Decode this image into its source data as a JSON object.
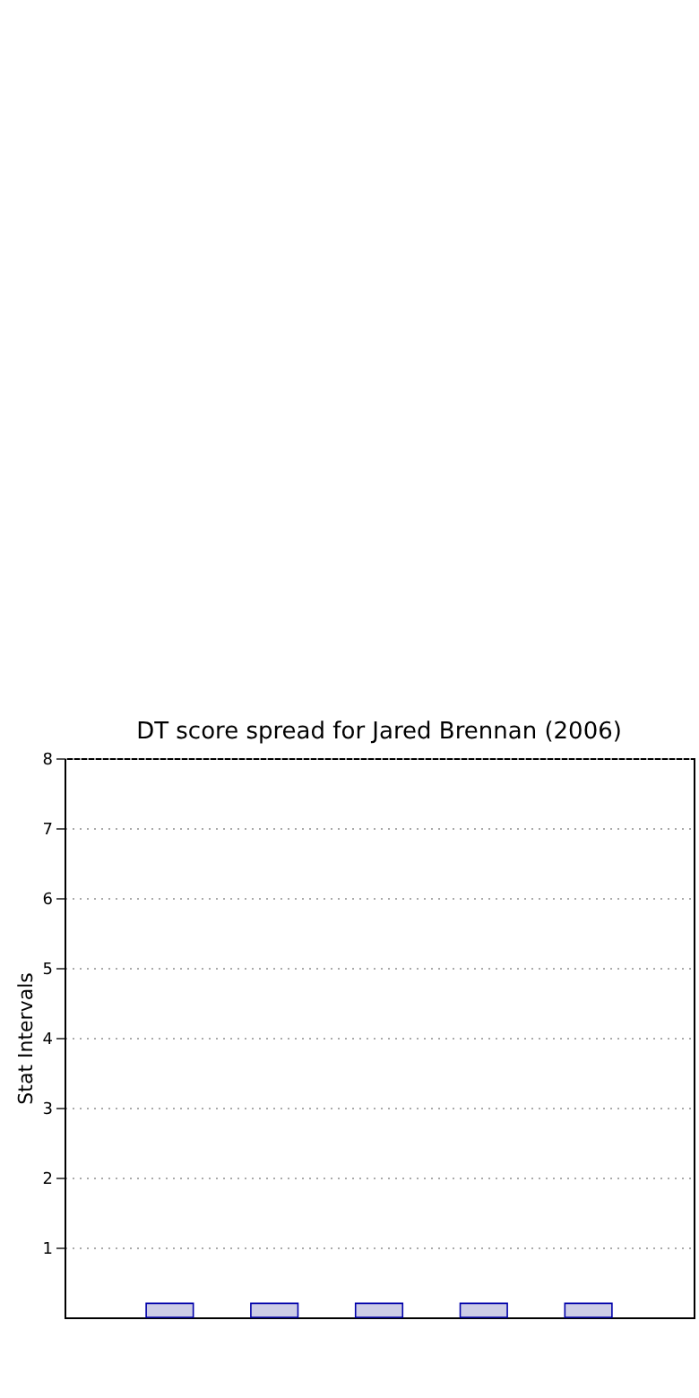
{
  "chart_data": {
    "type": "bar",
    "title": "DT score spread for Jared Brennan (2006)",
    "ylabel": "Stat Intervals",
    "categories": [
      null,
      null,
      null,
      null,
      null
    ],
    "values": [
      0.2,
      0.2,
      0.2,
      0.2,
      0.2
    ],
    "color": "#cccce6",
    "ylim": [
      0,
      8
    ],
    "yticks": [
      1,
      2,
      3,
      4,
      5,
      6,
      7,
      8
    ],
    "tick_labels": "y",
    "grid": "y"
  }
}
